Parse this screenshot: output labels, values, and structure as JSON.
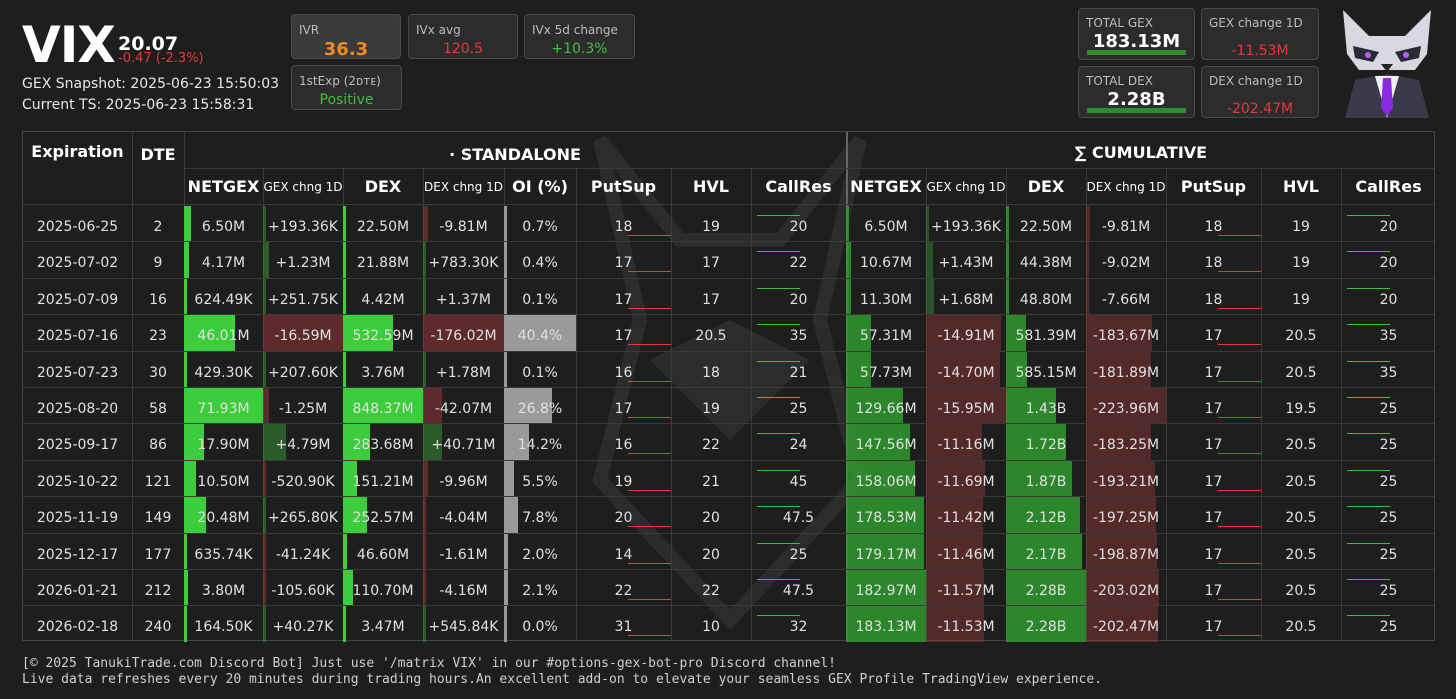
{
  "header": {
    "ticker": "VIX",
    "price": "20.07",
    "change": "-0.47 (-2.3%)",
    "gex_snapshot": "GEX Snapshot: 2025-06-23 15:50:03",
    "current_ts": "Current TS: 2025-06-23 15:58:31"
  },
  "stats": {
    "ivr": {
      "label": "IVR",
      "value": "36.3",
      "color": "#f08a24"
    },
    "ivx_avg": {
      "label": "IVx avg",
      "value": "120.5",
      "color": "#e03a3a"
    },
    "ivx_5d": {
      "label": "IVx 5d change",
      "value": "+10.3%",
      "color": "#3fbf3f"
    },
    "first_exp": {
      "label": "1stExp (2ᴅᴛᴇ)",
      "value": "Positive",
      "color": "#3fbf3f"
    },
    "total_gex": {
      "label": "TOTAL GEX",
      "value": "183.13M"
    },
    "gex_change": {
      "label": "GEX change 1D",
      "value": "-11.53M",
      "color": "#e03a3a"
    },
    "total_dex": {
      "label": "TOTAL DEX",
      "value": "2.28B"
    },
    "dex_change": {
      "label": "DEX change 1D",
      "value": "-202.47M",
      "color": "#e03a3a"
    }
  },
  "table": {
    "group_standalone": "· STANDALONE",
    "group_cumulative": "∑ CUMULATIVE",
    "columns": [
      "Expiration",
      "DTE",
      "NETGEX",
      "GEX chng 1D",
      "DEX",
      "DEX chng 1D",
      "OI (%)",
      "PutSup",
      "HVL",
      "CallRes",
      "NETGEX",
      "GEX chng 1D",
      "DEX",
      "DEX chng 1D",
      "PutSup",
      "HVL",
      "CallRes"
    ],
    "rows": [
      [
        "2025-06-25",
        "2",
        "6.50M",
        "+193.36K",
        "22.50M",
        "-9.81M",
        "0.7%",
        "18",
        "19",
        "20",
        "6.50M",
        "+193.36K",
        "22.50M",
        "-9.81M",
        "18",
        "19",
        "20"
      ],
      [
        "2025-07-02",
        "9",
        "4.17M",
        "+1.23M",
        "21.88M",
        "+783.30K",
        "0.4%",
        "17",
        "17",
        "22",
        "10.67M",
        "+1.43M",
        "44.38M",
        "-9.02M",
        "18",
        "19",
        "20"
      ],
      [
        "2025-07-09",
        "16",
        "624.49K",
        "+251.75K",
        "4.42M",
        "+1.37M",
        "0.1%",
        "17",
        "17",
        "20",
        "11.30M",
        "+1.68M",
        "48.80M",
        "-7.66M",
        "18",
        "19",
        "20"
      ],
      [
        "2025-07-16",
        "23",
        "46.01M",
        "-16.59M",
        "532.59M",
        "-176.02M",
        "40.4%",
        "17",
        "20.5",
        "35",
        "57.31M",
        "-14.91M",
        "581.39M",
        "-183.67M",
        "17",
        "20.5",
        "35"
      ],
      [
        "2025-07-23",
        "30",
        "429.30K",
        "+207.60K",
        "3.76M",
        "+1.78M",
        "0.1%",
        "16",
        "18",
        "21",
        "57.73M",
        "-14.70M",
        "585.15M",
        "-181.89M",
        "17",
        "20.5",
        "35"
      ],
      [
        "2025-08-20",
        "58",
        "71.93M",
        "-1.25M",
        "848.37M",
        "-42.07M",
        "26.8%",
        "17",
        "19",
        "25",
        "129.66M",
        "-15.95M",
        "1.43B",
        "-223.96M",
        "17",
        "19.5",
        "25"
      ],
      [
        "2025-09-17",
        "86",
        "17.90M",
        "+4.79M",
        "283.68M",
        "+40.71M",
        "14.2%",
        "16",
        "22",
        "24",
        "147.56M",
        "-11.16M",
        "1.72B",
        "-183.25M",
        "17",
        "20.5",
        "25"
      ],
      [
        "2025-10-22",
        "121",
        "10.50M",
        "-520.90K",
        "151.21M",
        "-9.96M",
        "5.5%",
        "19",
        "21",
        "45",
        "158.06M",
        "-11.69M",
        "1.87B",
        "-193.21M",
        "17",
        "20.5",
        "25"
      ],
      [
        "2025-11-19",
        "149",
        "20.48M",
        "+265.80K",
        "252.57M",
        "-4.04M",
        "7.8%",
        "20",
        "20",
        "47.5",
        "178.53M",
        "-11.42M",
        "2.12B",
        "-197.25M",
        "17",
        "20.5",
        "25"
      ],
      [
        "2025-12-17",
        "177",
        "635.74K",
        "-41.24K",
        "46.60M",
        "-1.61M",
        "2.0%",
        "14",
        "20",
        "25",
        "179.17M",
        "-11.46M",
        "2.17B",
        "-198.87M",
        "17",
        "20.5",
        "25"
      ],
      [
        "2026-01-21",
        "212",
        "3.80M",
        "-105.60K",
        "110.70M",
        "-4.16M",
        "2.1%",
        "22",
        "22",
        "47.5",
        "182.97M",
        "-11.57M",
        "2.28B",
        "-203.02M",
        "17",
        "20.5",
        "25"
      ],
      [
        "2026-02-18",
        "240",
        "164.50K",
        "+40.27K",
        "3.47M",
        "+545.84K",
        "0.0%",
        "31",
        "10",
        "32",
        "183.13M",
        "-11.53M",
        "2.28B",
        "-202.47M",
        "17",
        "20.5",
        "25"
      ]
    ]
  },
  "footer": {
    "line1": "[© 2025 TanukiTrade.com Discord Bot] Just use '/matrix VIX' in our #options-gex-bot-pro Discord channel!",
    "line2": "Live data refreshes every 20 minutes during trading hours.An excellent add-on to elevate your seamless GEX Profile TradingView experience."
  }
}
